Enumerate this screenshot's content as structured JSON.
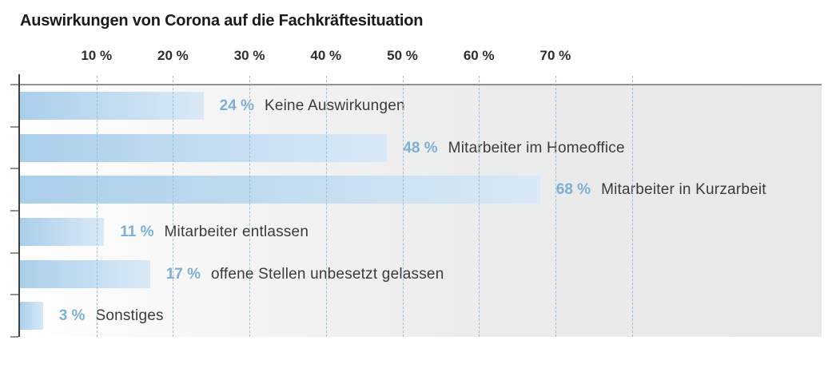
{
  "chart_data": {
    "type": "bar",
    "orientation": "horizontal",
    "title": "Auswirkungen von Corona auf die Fachkräftesituation",
    "xlabel": "",
    "ylabel": "",
    "x_ticks": [
      "10 %",
      "20 %",
      "30 %",
      "40 %",
      "50 %",
      "60 %",
      "70 %"
    ],
    "x_tick_values": [
      10,
      20,
      30,
      40,
      50,
      60,
      70
    ],
    "gridline_values": [
      10,
      20,
      30,
      40,
      50,
      60,
      70,
      80
    ],
    "xlim": [
      0,
      104.8
    ],
    "grid": "vertical-dashed",
    "legend": "none",
    "categories": [
      "Keine Auswirkungen",
      "Mitarbeiter im Homeoffice",
      "Mitarbeiter in Kurzarbeit",
      "Mitarbeiter entlassen",
      "offene Stellen unbesetzt gelassen",
      "Sonstiges"
    ],
    "values": [
      24,
      48,
      68,
      11,
      17,
      3
    ],
    "value_labels": [
      "24 %",
      "48 %",
      "68 %",
      "11 %",
      "17 %",
      "3 %"
    ],
    "colors": {
      "bar_gradient_start": "#aacfea",
      "bar_gradient_end": "#d9e9f6",
      "value_label_text": "#7dafd4",
      "category_label_text": "#3b3b3b",
      "gridline": "#9dbeda",
      "y_axis_line": "#3c4043",
      "top_axis_line": "#8f9396",
      "plot_background_left": "#ffffff",
      "plot_background_right": "#e8e9e9",
      "title_text": "#1b1b1b",
      "tick_label_text": "#2d2d2d"
    }
  }
}
